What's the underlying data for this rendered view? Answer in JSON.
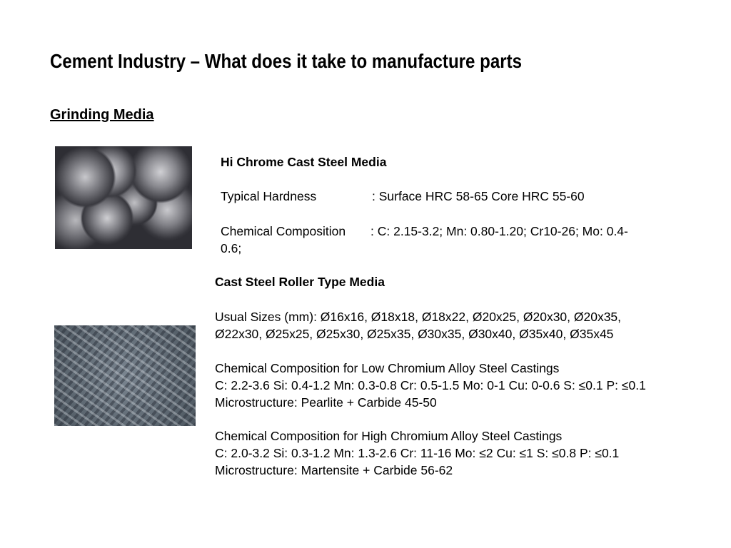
{
  "slide": {
    "title": "Cement Industry – What does it take to manufacture parts",
    "subtitle": "Grinding Media"
  },
  "hi_chrome": {
    "heading": "Hi Chrome Cast Steel Media",
    "hardness_label": "Typical Hardness",
    "hardness_value": ": Surface HRC 58-65 Core HRC 55-60",
    "composition_label": "Chemical Composition",
    "composition_value": ": C: 2.15-3.2; Mn: 0.80-1.20; Cr10-26; Mo: 0.4-",
    "composition_cont": "0.6;"
  },
  "roller": {
    "heading": "Cast Steel Roller Type Media",
    "sizes_line1": "Usual Sizes (mm): Ø16x16, Ø18x18, Ø18x22, Ø20x25, Ø20x30, Ø20x35,",
    "sizes_line2": "Ø22x30, Ø25x25, Ø25x30, Ø25x35, Ø30x35, Ø30x40, Ø35x40, Ø35x45",
    "low_heading": "Chemical Composition for Low Chromium Alloy Steel Castings",
    "low_values": "C: 2.2-3.6 Si: 0.4-1.2 Mn: 0.3-0.8 Cr: 0.5-1.5 Mo: 0-1 Cu: 0-0.6 S: ≤0.1 P: ≤0.1",
    "low_micro": "Microstructure: Pearlite + Carbide 45-50",
    "high_heading": "Chemical Composition for High Chromium Alloy Steel Castings",
    "high_values": "C: 2.0-3.2 Si: 0.3-1.2 Mn: 1.3-2.6 Cr: 11-16 Mo: ≤2 Cu: ≤1 S: ≤0.8 P: ≤0.1",
    "high_micro": "Microstructure: Martensite + Carbide 56-62"
  }
}
